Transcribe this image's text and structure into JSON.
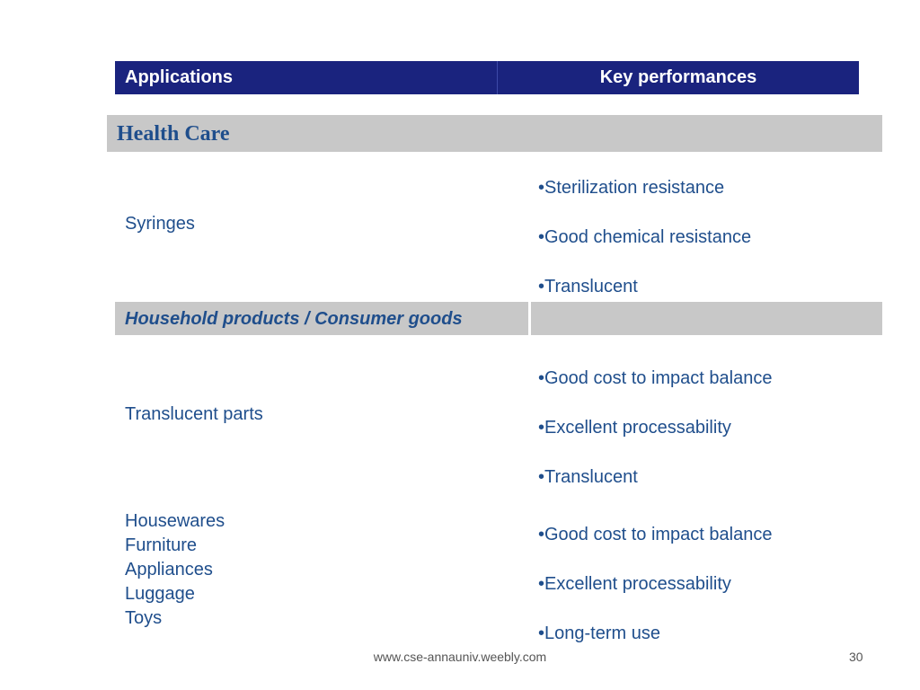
{
  "table": {
    "header": {
      "applications": "Applications",
      "key_performances": "Key performances"
    },
    "sections": [
      {
        "title": "Health Care",
        "rows": [
          {
            "application": "Syringes",
            "performances": [
              "•Sterilization resistance",
              "•Good chemical resistance",
              "•Translucent"
            ]
          }
        ]
      },
      {
        "title": "Household products / Consumer goods",
        "rows": [
          {
            "application": "Translucent parts",
            "performances": [
              "•Good cost to impact balance",
              "•Excellent processability",
              "•Translucent"
            ]
          },
          {
            "application_lines": [
              "Housewares",
              "Furniture",
              "Appliances",
              "Luggage",
              "Toys"
            ],
            "performances": [
              "•Good cost to impact balance",
              "•Excellent processability",
              "•Long-term use"
            ]
          }
        ]
      }
    ]
  },
  "footer": {
    "url": "www.cse-annauniv.weebly.com",
    "page_number": "30"
  },
  "colors": {
    "header_bg": "#1a237e",
    "section_bg": "#c8c8c8",
    "text": "#1f4e8c"
  }
}
